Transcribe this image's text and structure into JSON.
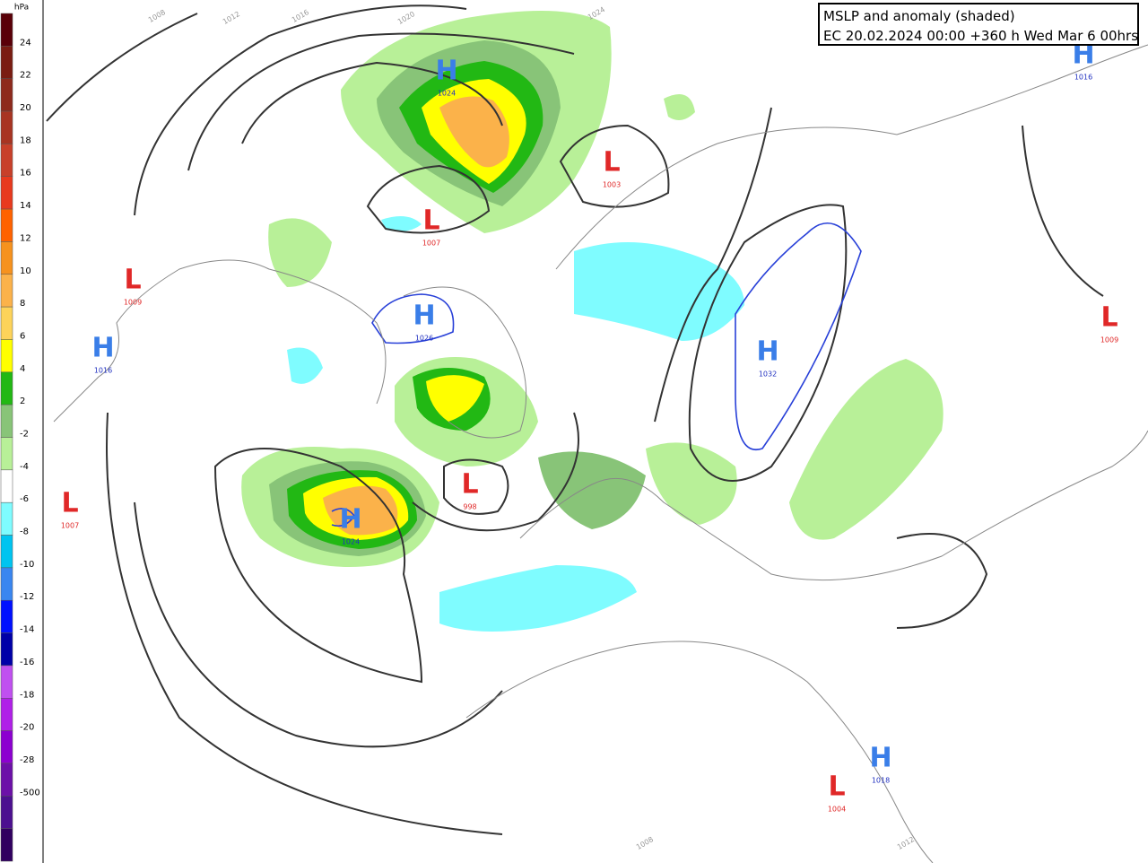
{
  "title": {
    "line1": "MSLP and anomaly (shaded)",
    "line2": "EC 20.02.2024 00:00 +360 h Wed Mar 6 00hrs"
  },
  "legend": {
    "unit": "hPa",
    "levels": [
      24,
      22,
      20,
      18,
      16,
      14,
      12,
      10,
      8,
      6,
      4,
      2,
      -2,
      -4,
      -6,
      -8,
      -10,
      -12,
      -14,
      -16,
      -18,
      -20,
      -28,
      -500
    ],
    "colors": [
      "#5a0008",
      "#7a1c12",
      "#8e2a1c",
      "#a83422",
      "#c8402a",
      "#e83a1e",
      "#ff6200",
      "#f6921e",
      "#fbb24a",
      "#fdd35a",
      "#ffff00",
      "#22b814",
      "#88c478",
      "#b8f098",
      "#ffffff",
      "#7ffcff",
      "#00c4f0",
      "#3a86f0",
      "#0010ff",
      "#0000a8",
      "#c050f0",
      "#b020e8",
      "#8c00d0",
      "#6c10a8",
      "#4c1090",
      "#300060"
    ]
  },
  "centers": [
    {
      "letter": "H",
      "value": "1024"
    },
    {
      "letter": "L",
      "value": "1003"
    },
    {
      "letter": "L",
      "value": "1007"
    },
    {
      "letter": "L",
      "value": "1009"
    },
    {
      "letter": "H",
      "value": "1026"
    },
    {
      "letter": "H",
      "value": "1016"
    },
    {
      "letter": "H",
      "value": "1032"
    },
    {
      "letter": "L",
      "value": "998"
    },
    {
      "letter": "H",
      "value": "1024"
    },
    {
      "letter": "L",
      "value": "1007"
    },
    {
      "letter": "H",
      "value": "1016"
    },
    {
      "letter": "L",
      "value": "1009"
    },
    {
      "letter": "H",
      "value": "1018"
    },
    {
      "letter": "L",
      "value": "1004"
    }
  ],
  "contour_labels": [
    "1008",
    "1012",
    "1016",
    "1020",
    "1024",
    "1008",
    "1012"
  ]
}
